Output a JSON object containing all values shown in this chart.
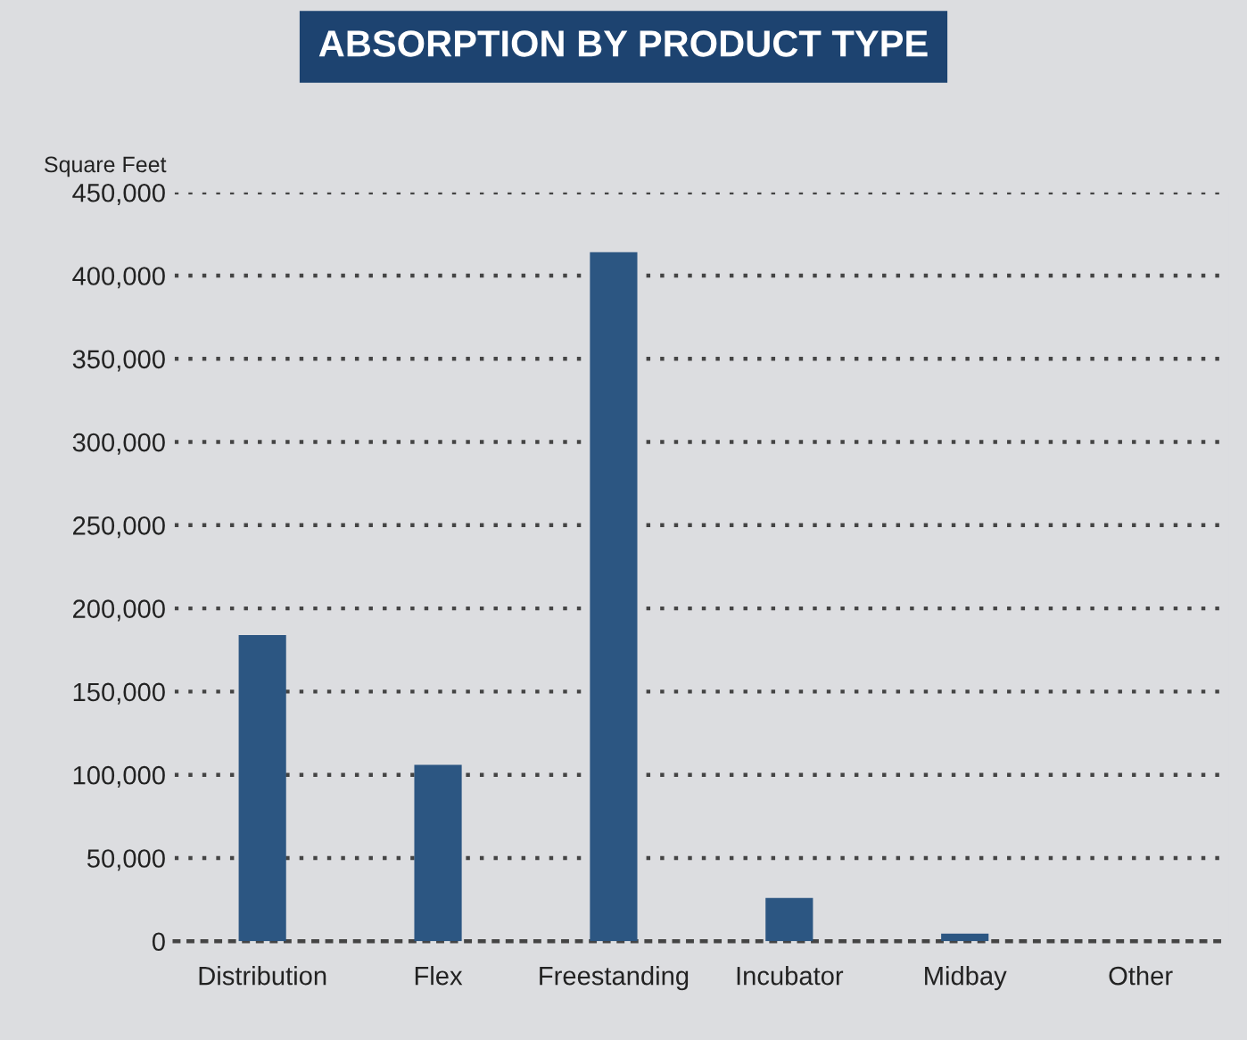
{
  "chart_data": {
    "type": "bar",
    "title": "ABSORPTION BY PRODUCT TYPE",
    "ylabel": "Square Feet",
    "categories": [
      "Distribution",
      "Flex",
      "Freestanding",
      "Incubator",
      "Midbay",
      "Other"
    ],
    "values": [
      184000,
      106000,
      414000,
      26000,
      4500,
      0
    ],
    "color": "#2c5682",
    "ylim": [
      0,
      450000
    ],
    "yticks": [
      {
        "value": 0,
        "label": "0"
      },
      {
        "value": 50000,
        "label": "50,000"
      },
      {
        "value": 100000,
        "label": "100,000"
      },
      {
        "value": 150000,
        "label": "150,000"
      },
      {
        "value": 200000,
        "label": "200,000"
      },
      {
        "value": 250000,
        "label": "250,000"
      },
      {
        "value": 300000,
        "label": "300,000"
      },
      {
        "value": 350000,
        "label": "350,000"
      },
      {
        "value": 400000,
        "label": "400,000"
      },
      {
        "value": 450000,
        "label": "450,000"
      }
    ],
    "grid": "y"
  }
}
